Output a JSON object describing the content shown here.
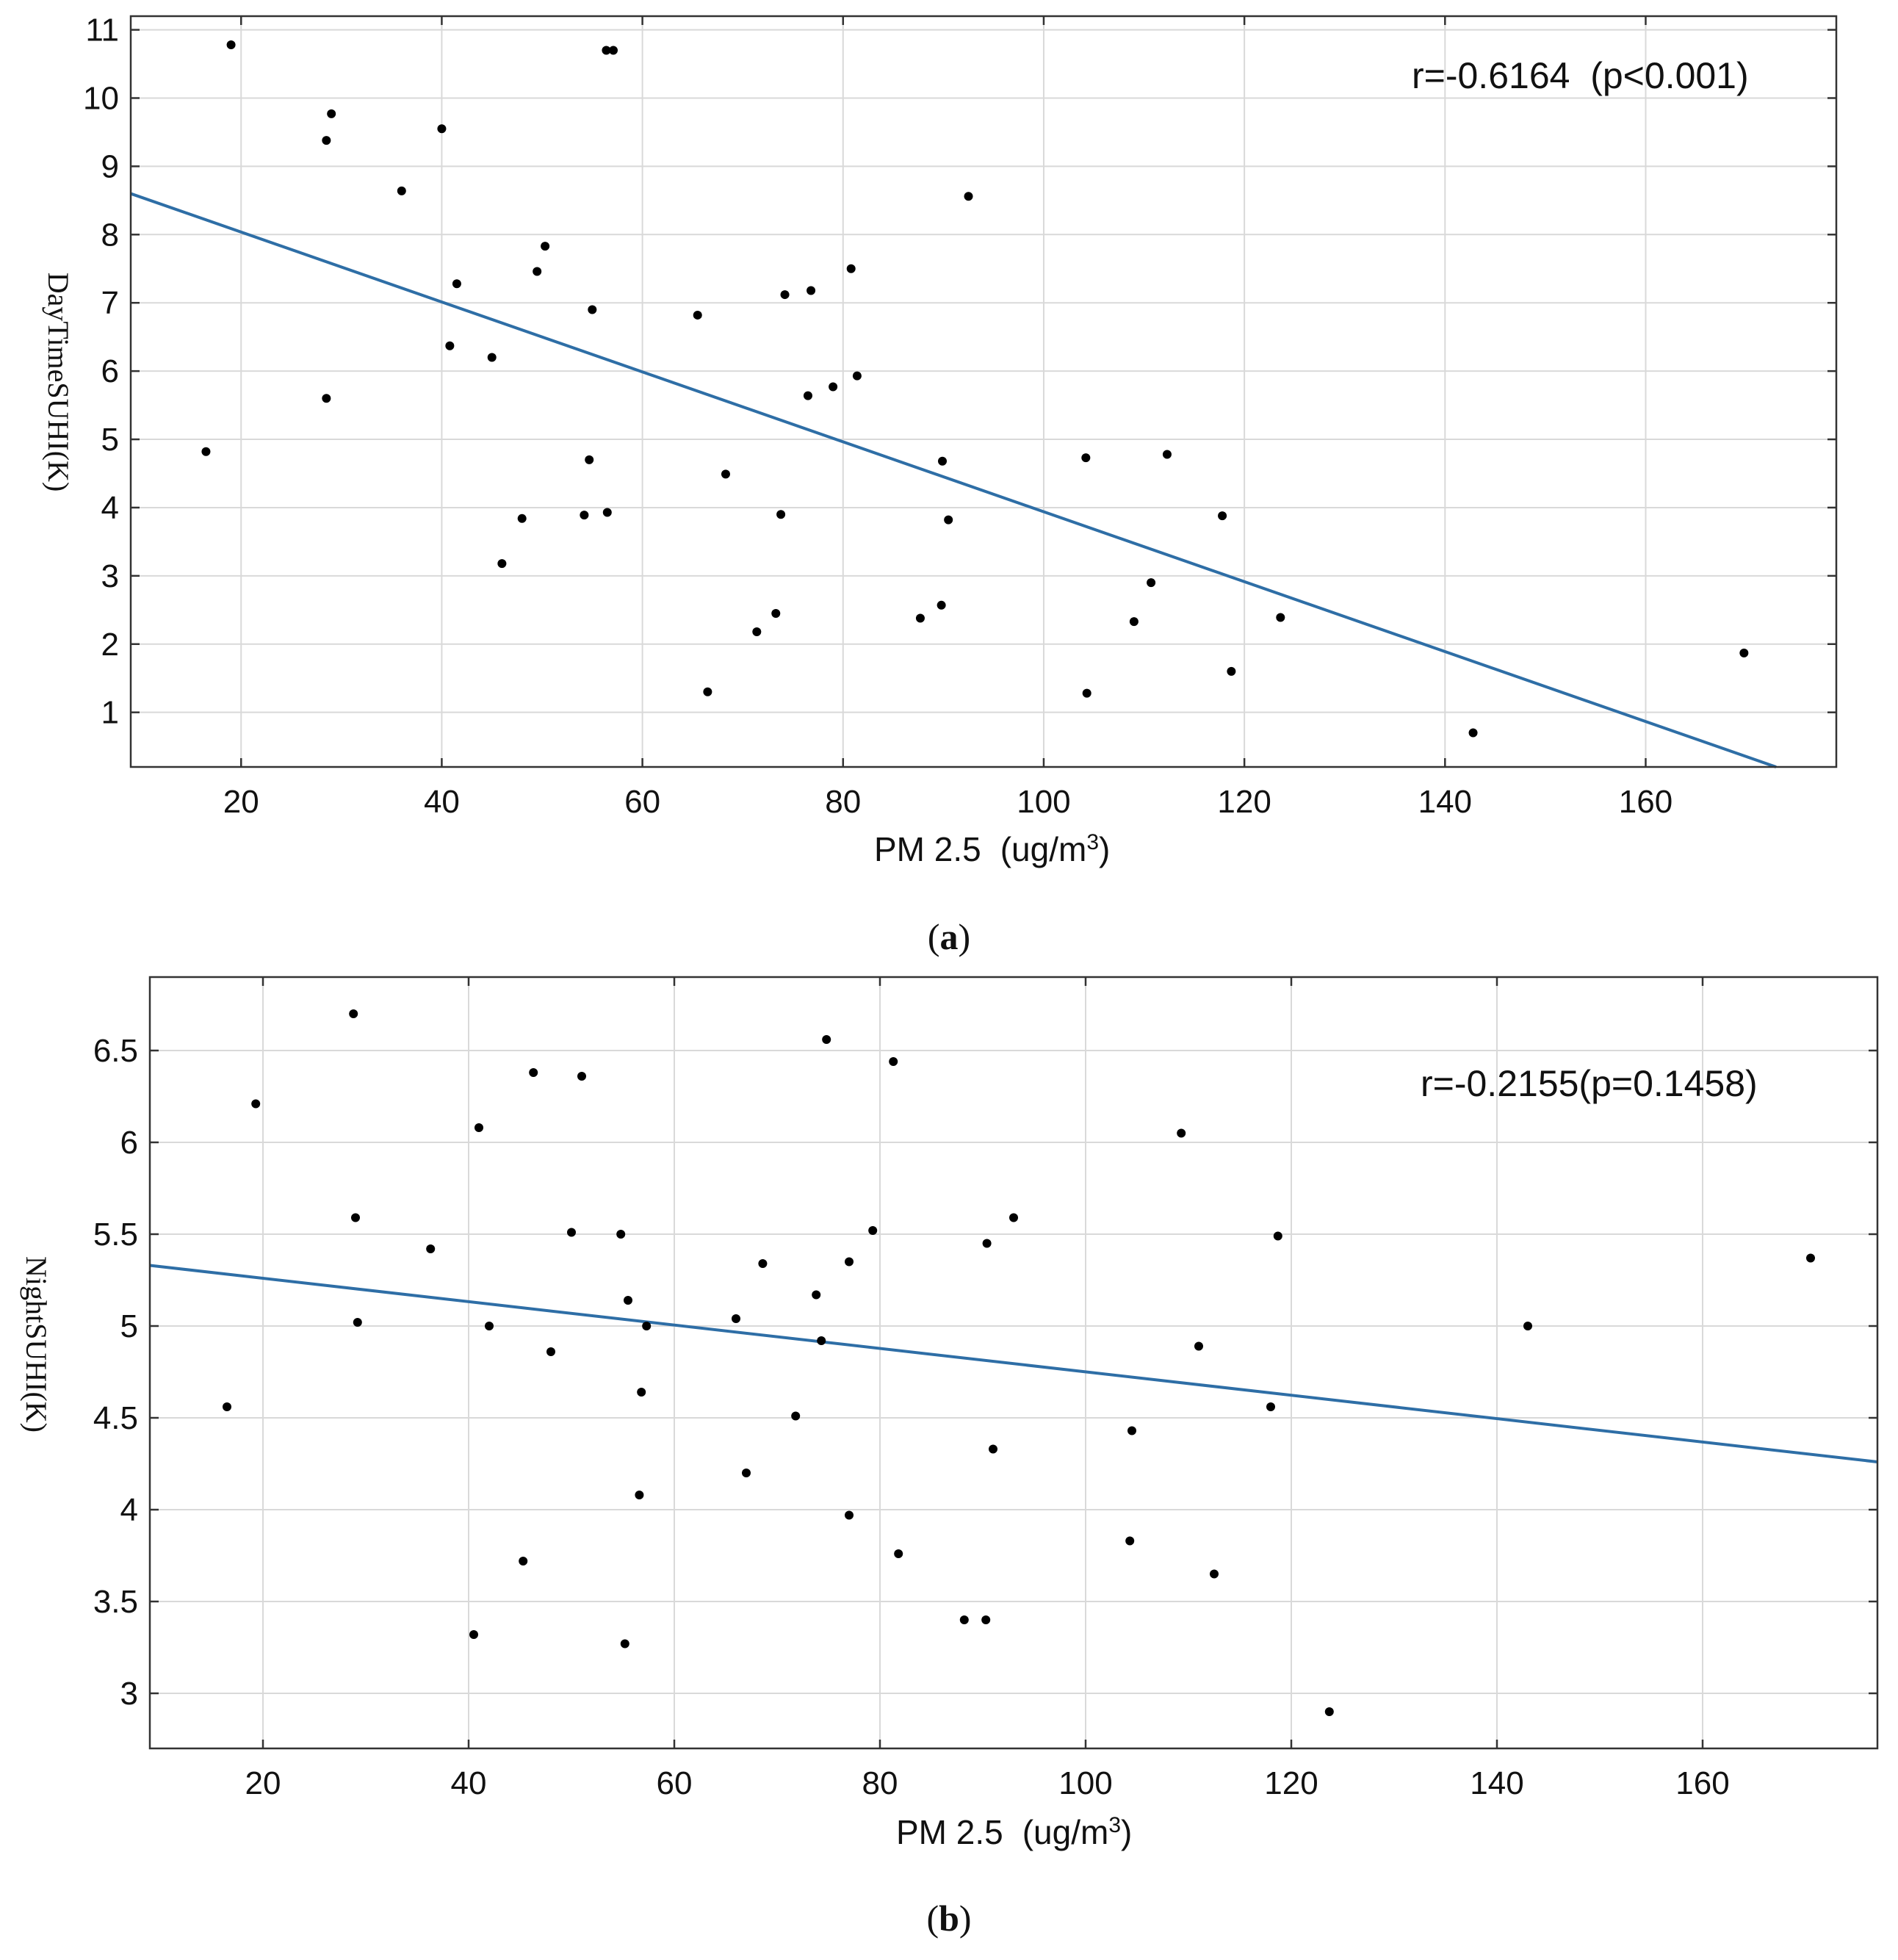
{
  "chart_data": [
    {
      "type": "scatter",
      "panel_label": "a",
      "xlabel": "PM 2.5",
      "xlabel_unit_prefix": "(ug/m",
      "xlabel_unit_sup": "3",
      "xlabel_unit_suffix": ")",
      "ylabel": "DayTimeSUHI(K)",
      "annotation": "r=-0.6164  (p<0.001)",
      "xlim": [
        9,
        179
      ],
      "ylim": [
        0.2,
        11.2
      ],
      "xticks": [
        20,
        40,
        60,
        80,
        100,
        120,
        140,
        160
      ],
      "yticks": [
        1,
        2,
        3,
        4,
        5,
        6,
        7,
        8,
        9,
        10,
        11
      ],
      "colors": {
        "line": "#2e6ea6",
        "points": "#000000"
      },
      "regression": {
        "x": [
          9,
          173
        ],
        "y": [
          8.6,
          0.2
        ]
      },
      "points": {
        "x": [
          16.5,
          19,
          28.5,
          29,
          28.5,
          36,
          40,
          40.8,
          41.5,
          45,
          46,
          48,
          49.5,
          50.3,
          54.2,
          54.7,
          55,
          56.4,
          56.5,
          57.1,
          65.5,
          66.5,
          68.3,
          71.4,
          73.3,
          73.8,
          74.2,
          76.5,
          76.8,
          79,
          80.8,
          81.4,
          87.7,
          89.8,
          89.9,
          90.5,
          92.5,
          104.2,
          104.3,
          109,
          110.7,
          112.3,
          117.8,
          118.7,
          123.6,
          142.8,
          169.8
        ],
        "y": [
          4.82,
          10.78,
          5.6,
          9.77,
          9.38,
          8.64,
          9.55,
          6.37,
          7.28,
          6.2,
          3.18,
          3.84,
          7.46,
          7.83,
          3.89,
          4.7,
          6.9,
          10.7,
          3.93,
          10.7,
          6.82,
          1.3,
          4.49,
          2.18,
          2.45,
          3.9,
          7.12,
          5.64,
          7.18,
          5.77,
          7.5,
          5.93,
          2.38,
          2.57,
          4.68,
          3.82,
          8.56,
          4.73,
          1.28,
          2.33,
          2.9,
          4.78,
          3.88,
          1.6,
          2.39,
          0.7,
          1.87
        ]
      }
    },
    {
      "type": "scatter",
      "panel_label": "b",
      "xlabel": "PM 2.5",
      "xlabel_unit_prefix": "(ug/m",
      "xlabel_unit_sup": "3",
      "xlabel_unit_suffix": ")",
      "ylabel": "NightSUHI(K)",
      "annotation": "r=-0.2155(p=0.1458)",
      "xlim": [
        9,
        177
      ],
      "ylim": [
        2.7,
        6.9
      ],
      "xticks": [
        20,
        40,
        60,
        80,
        100,
        120,
        140,
        160
      ],
      "yticks": [
        3,
        3.5,
        4,
        4.5,
        5,
        5.5,
        6,
        6.5
      ],
      "ytick_labels": [
        "3",
        "3.5",
        "4",
        "4.5",
        "5",
        "5.5",
        "6",
        "6.5"
      ],
      "colors": {
        "line": "#2e6ea6",
        "points": "#000000"
      },
      "regression": {
        "x": [
          9,
          177
        ],
        "y": [
          5.33,
          4.26
        ]
      },
      "points": {
        "x": [
          16.5,
          19.3,
          28.8,
          29,
          29.2,
          36.3,
          40.5,
          41,
          42,
          45.3,
          46.3,
          48,
          50,
          51,
          54.8,
          55.2,
          55.5,
          56.6,
          56.8,
          57.3,
          66,
          67,
          68.6,
          71.8,
          73.8,
          74.3,
          74.8,
          77,
          77,
          79.3,
          81.3,
          81.8,
          88.2,
          90.3,
          90.4,
          91,
          93,
          104.3,
          104.5,
          109.3,
          111,
          112.5,
          118,
          118.7,
          123.7,
          143,
          170.5
        ],
        "y": [
          4.56,
          6.21,
          6.7,
          5.59,
          5.02,
          5.42,
          3.32,
          6.08,
          5.0,
          3.72,
          6.38,
          4.86,
          5.51,
          6.36,
          5.5,
          3.27,
          5.14,
          4.08,
          4.64,
          5.0,
          5.04,
          4.2,
          5.34,
          4.51,
          5.17,
          4.92,
          6.56,
          3.97,
          5.35,
          5.52,
          6.44,
          3.76,
          3.4,
          3.4,
          5.45,
          4.33,
          5.59,
          3.83,
          4.43,
          6.05,
          4.89,
          3.65,
          4.56,
          5.49,
          2.9,
          5.0,
          5.37
        ]
      }
    }
  ]
}
